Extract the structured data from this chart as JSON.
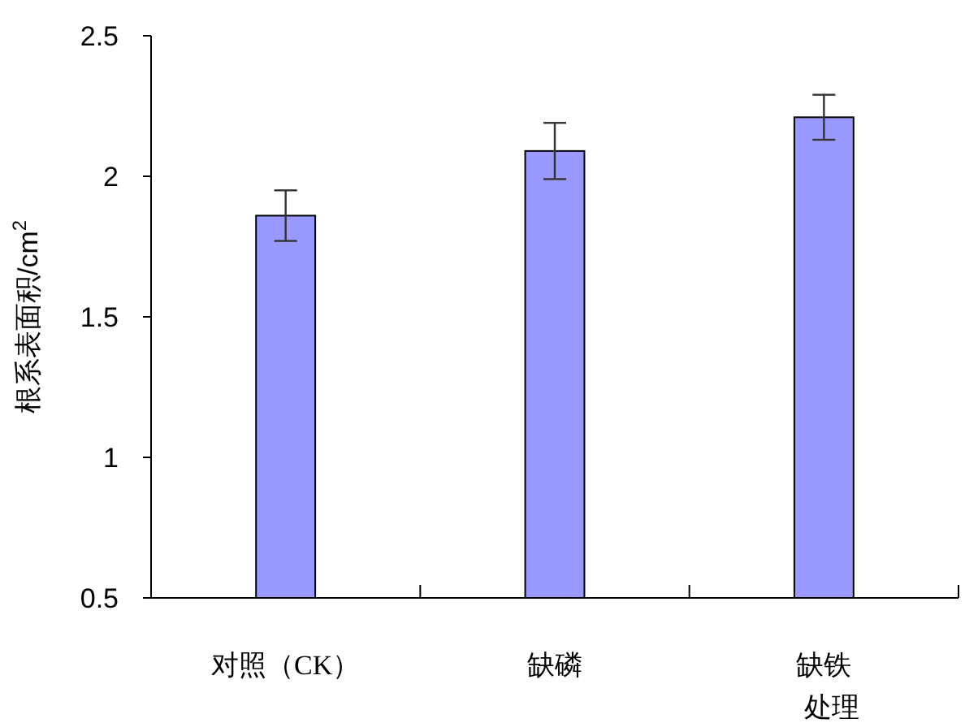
{
  "chart_data": {
    "type": "bar",
    "categories": [
      "对照（CK）",
      "缺磷",
      "缺铁"
    ],
    "values": [
      1.86,
      2.09,
      2.21
    ],
    "errors": [
      0.09,
      0.1,
      0.08
    ],
    "color": "#9999ff",
    "xlabel": "处理",
    "ylabel": "根系表面积/cm$^{2}$",
    "ylim": [
      0.5,
      2.5
    ],
    "yticks": [
      0.5,
      1,
      1.5,
      2,
      2.5
    ],
    "grid": false
  }
}
